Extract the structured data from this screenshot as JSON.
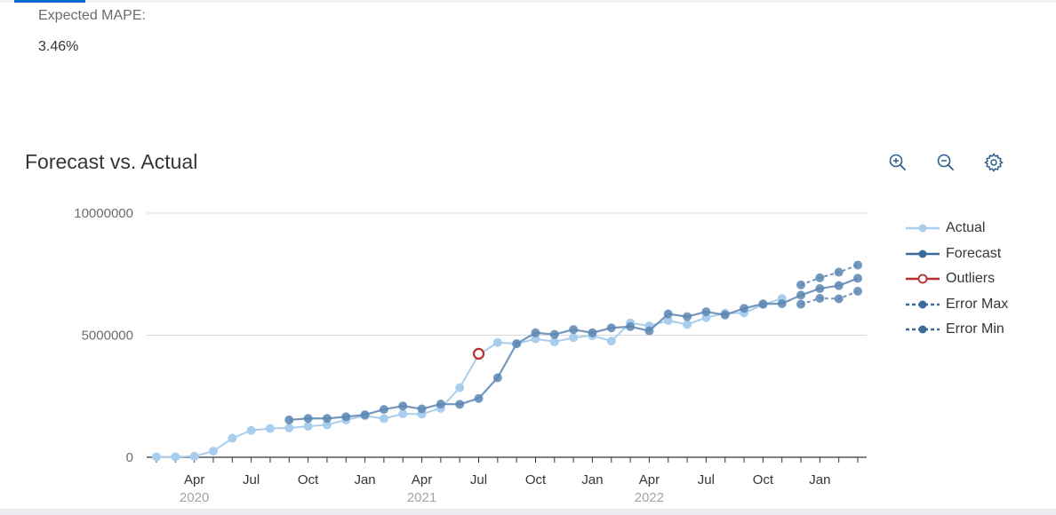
{
  "metric": {
    "label": "Expected MAPE:",
    "value": "3.46%"
  },
  "chart_title": "Forecast vs. Actual",
  "toolbar": {
    "zoom_in": "zoom-in-icon",
    "zoom_out": "zoom-out-icon",
    "settings": "gear-icon"
  },
  "colors": {
    "actual": "#a9cdec",
    "forecast": "#5c86b1",
    "outlier": "#b6302e",
    "error": "#5c86b1"
  },
  "chart_data": {
    "type": "line",
    "x_start": "2020-02",
    "x_end": "2023-03",
    "ylim": [
      0,
      10000000
    ],
    "y_ticks": [
      {
        "value": 0,
        "label": "0"
      },
      {
        "value": 5000000,
        "label": "5000000"
      },
      {
        "value": 10000000,
        "label": "10000000"
      }
    ],
    "month_labels": [
      {
        "month": "2020-04",
        "label": "Apr"
      },
      {
        "month": "2020-07",
        "label": "Jul"
      },
      {
        "month": "2020-10",
        "label": "Oct"
      },
      {
        "month": "2021-01",
        "label": "Jan"
      },
      {
        "month": "2021-04",
        "label": "Apr"
      },
      {
        "month": "2021-07",
        "label": "Jul"
      },
      {
        "month": "2021-10",
        "label": "Oct"
      },
      {
        "month": "2022-01",
        "label": "Jan"
      },
      {
        "month": "2022-04",
        "label": "Apr"
      },
      {
        "month": "2022-07",
        "label": "Jul"
      },
      {
        "month": "2022-10",
        "label": "Oct"
      },
      {
        "month": "2023-01",
        "label": "Jan"
      }
    ],
    "year_labels": [
      {
        "month": "2020-04",
        "label": "2020"
      },
      {
        "month": "2021-04",
        "label": "2021"
      },
      {
        "month": "2022-04",
        "label": "2022"
      }
    ],
    "grid": true,
    "legend_position": "right",
    "series": [
      {
        "name": "Actual",
        "x": [
          "2020-02",
          "2020-03",
          "2020-04",
          "2020-05",
          "2020-06",
          "2020-07",
          "2020-08",
          "2020-09",
          "2020-10",
          "2020-11",
          "2020-12",
          "2021-01",
          "2021-02",
          "2021-03",
          "2021-04",
          "2021-05",
          "2021-06",
          "2021-07",
          "2021-08",
          "2021-09",
          "2021-10",
          "2021-11",
          "2021-12",
          "2022-01",
          "2022-02",
          "2022-03",
          "2022-04",
          "2022-05",
          "2022-06",
          "2022-07",
          "2022-08",
          "2022-09",
          "2022-10",
          "2022-11"
        ],
        "values": [
          20000,
          20000,
          40000,
          250000,
          780000,
          1100000,
          1180000,
          1200000,
          1270000,
          1330000,
          1530000,
          1700000,
          1580000,
          1780000,
          1770000,
          2010000,
          2850000,
          4200000,
          4700000,
          4650000,
          4850000,
          4730000,
          4900000,
          4980000,
          4760000,
          5500000,
          5380000,
          5600000,
          5440000,
          5720000,
          5900000,
          5910000,
          6250000,
          6500000
        ]
      },
      {
        "name": "Forecast",
        "x": [
          "2020-09",
          "2020-10",
          "2020-11",
          "2020-12",
          "2021-01",
          "2021-02",
          "2021-03",
          "2021-04",
          "2021-05",
          "2021-06",
          "2021-07",
          "2021-08",
          "2021-09",
          "2021-10",
          "2021-11",
          "2021-12",
          "2022-01",
          "2022-02",
          "2022-03",
          "2022-04",
          "2022-05",
          "2022-06",
          "2022-07",
          "2022-08",
          "2022-09",
          "2022-10",
          "2022-11",
          "2022-12",
          "2023-01",
          "2023-02",
          "2023-03"
        ],
        "values": [
          1530000,
          1590000,
          1590000,
          1660000,
          1740000,
          1960000,
          2100000,
          1980000,
          2180000,
          2170000,
          2410000,
          3260000,
          4650000,
          5100000,
          5030000,
          5230000,
          5100000,
          5300000,
          5350000,
          5180000,
          5870000,
          5760000,
          5960000,
          5830000,
          6100000,
          6280000,
          6290000,
          6640000,
          6910000,
          7030000,
          7330000
        ]
      },
      {
        "name": "Outliers",
        "x": [
          "2021-07"
        ],
        "values": [
          4240000
        ]
      },
      {
        "name": "Error Max",
        "x": [
          "2022-12",
          "2023-01",
          "2023-02",
          "2023-03"
        ],
        "values": [
          7060000,
          7350000,
          7580000,
          7870000
        ]
      },
      {
        "name": "Error Min",
        "x": [
          "2022-12",
          "2023-01",
          "2023-02",
          "2023-03"
        ],
        "values": [
          6270000,
          6510000,
          6490000,
          6800000
        ]
      }
    ]
  }
}
